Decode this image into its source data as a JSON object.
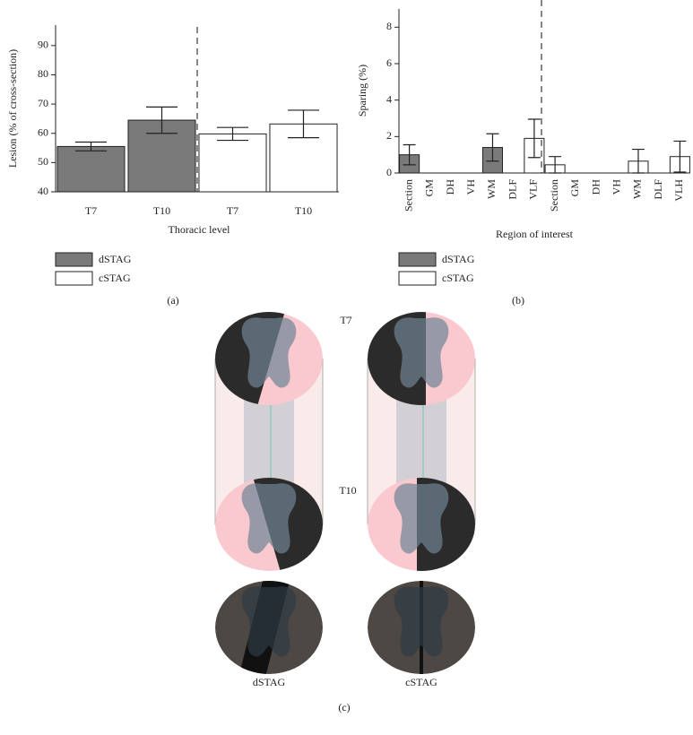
{
  "chart_data": [
    {
      "type": "bar",
      "panel_label": "(a)",
      "xlabel": "Thoracic level",
      "ylabel": "Lesion (% of cross-section)",
      "categories": [
        "T7",
        "T10",
        "T7",
        "T10"
      ],
      "series": [
        {
          "name": "dSTAG",
          "color": "#7a7a7a",
          "values": [
            55.5,
            64.5,
            null,
            null
          ],
          "errors": [
            1.5,
            4.5,
            null,
            null
          ]
        },
        {
          "name": "cSTAG",
          "color": "#ffffff",
          "values": [
            null,
            null,
            59.8,
            63.2
          ],
          "errors": [
            null,
            null,
            2.2,
            4.7
          ]
        }
      ],
      "ylim": [
        40,
        97
      ],
      "yticks": [
        40,
        50,
        60,
        70,
        80,
        90
      ]
    },
    {
      "type": "bar",
      "panel_label": "(b)",
      "xlabel": "Region of interest",
      "ylabel": "Sparing (%)",
      "categories": [
        "Section",
        "GM",
        "DH",
        "VH",
        "WM",
        "DLF",
        "VLF",
        "Section",
        "GM",
        "DH",
        "VH",
        "WM",
        "DLF",
        "VLH"
      ],
      "series": [
        {
          "name": "dSTAG",
          "color": "#7a7a7a",
          "values": [
            1.0,
            0,
            0,
            0,
            1.4,
            0,
            null,
            null,
            null,
            null,
            null,
            null,
            null,
            null
          ],
          "errors": [
            0.55,
            null,
            null,
            null,
            0.75,
            null,
            null,
            null,
            null,
            null,
            null,
            null,
            null,
            null
          ]
        },
        {
          "name": "cSTAG",
          "color": "#ffffff",
          "values": [
            null,
            null,
            null,
            null,
            null,
            null,
            1.9,
            0.45,
            0,
            0,
            0,
            0.65,
            0,
            0.9
          ],
          "errors": [
            null,
            null,
            null,
            null,
            null,
            null,
            1.05,
            0.45,
            null,
            null,
            null,
            0.65,
            null,
            0.85
          ]
        }
      ],
      "ylim": [
        0,
        9
      ],
      "yticks": [
        0,
        2,
        4,
        6,
        8
      ]
    }
  ],
  "illustration": {
    "panel_label": "(c)",
    "level_labels": [
      "T7",
      "T10"
    ],
    "condition_labels": [
      "dSTAG",
      "cSTAG"
    ]
  }
}
